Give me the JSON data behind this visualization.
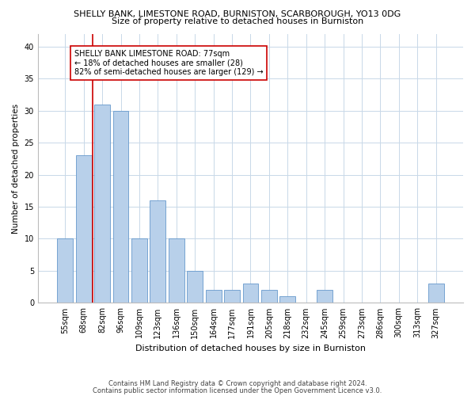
{
  "title1": "SHELLY BANK, LIMESTONE ROAD, BURNISTON, SCARBOROUGH, YO13 0DG",
  "title2": "Size of property relative to detached houses in Burniston",
  "xlabel": "Distribution of detached houses by size in Burniston",
  "ylabel": "Number of detached properties",
  "categories": [
    "55sqm",
    "68sqm",
    "82sqm",
    "96sqm",
    "109sqm",
    "123sqm",
    "136sqm",
    "150sqm",
    "164sqm",
    "177sqm",
    "191sqm",
    "205sqm",
    "218sqm",
    "232sqm",
    "245sqm",
    "259sqm",
    "273sqm",
    "286sqm",
    "300sqm",
    "313sqm",
    "327sqm"
  ],
  "values": [
    10,
    23,
    31,
    30,
    10,
    16,
    10,
    5,
    2,
    2,
    3,
    2,
    1,
    0,
    2,
    0,
    0,
    0,
    0,
    0,
    3
  ],
  "bar_color": "#b8d0ea",
  "bar_edge_color": "#6699cc",
  "property_line_x": 1.5,
  "property_line_color": "#cc0000",
  "annotation_text": "SHELLY BANK LIMESTONE ROAD: 77sqm\n← 18% of detached houses are smaller (28)\n82% of semi-detached houses are larger (129) →",
  "annotation_box_color": "#ffffff",
  "annotation_box_edge": "#cc0000",
  "ylim": [
    0,
    42
  ],
  "yticks": [
    0,
    5,
    10,
    15,
    20,
    25,
    30,
    35,
    40
  ],
  "footer1": "Contains HM Land Registry data © Crown copyright and database right 2024.",
  "footer2": "Contains public sector information licensed under the Open Government Licence v3.0.",
  "background_color": "#ffffff",
  "grid_color": "#c8d8e8",
  "title1_fontsize": 8.0,
  "title2_fontsize": 8.0,
  "ylabel_fontsize": 7.5,
  "xlabel_fontsize": 8.0,
  "tick_fontsize": 7.0,
  "annot_fontsize": 7.0,
  "footer_fontsize": 6.0
}
